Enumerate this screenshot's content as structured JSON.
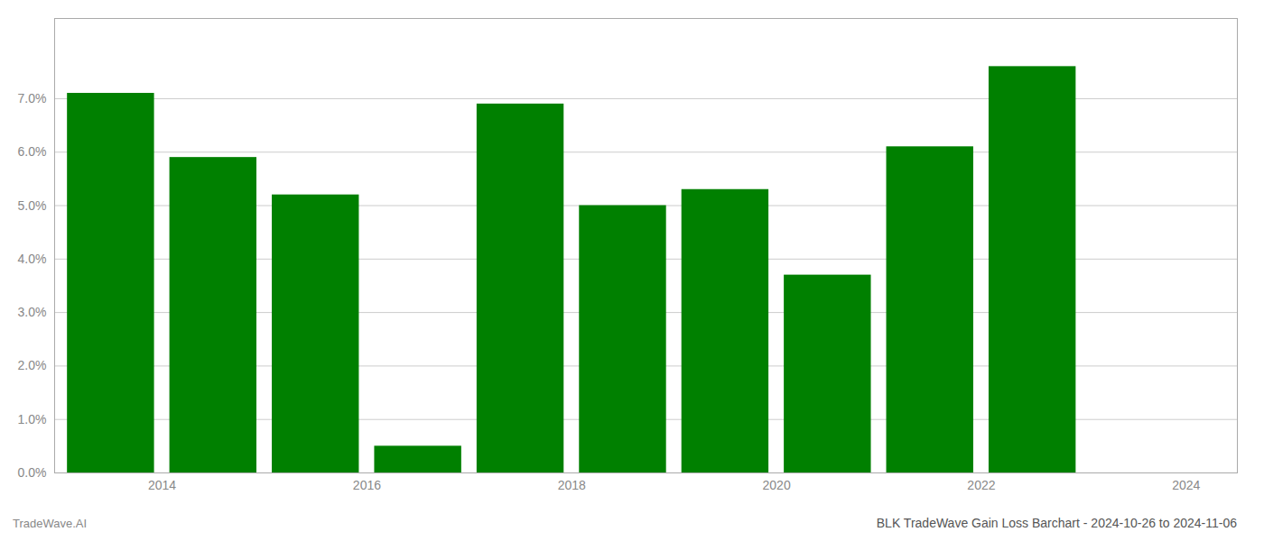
{
  "chart_data": {
    "type": "bar",
    "title": "BLK TradeWave Gain Loss Barchart - 2024-10-26 to 2024-11-06",
    "footer": "TradeWave.AI",
    "x": [
      2014,
      2015,
      2016,
      2017,
      2018,
      2019,
      2020,
      2021,
      2022,
      2023
    ],
    "values": [
      0.071,
      0.059,
      0.052,
      0.005,
      0.069,
      0.05,
      0.053,
      0.037,
      0.061,
      0.076
    ],
    "color": "#008000",
    "xlim": [
      2013.45,
      2025.0
    ],
    "xticks": [
      {
        "value": 2014.5,
        "label": "2014"
      },
      {
        "value": 2016.5,
        "label": "2016"
      },
      {
        "value": 2018.5,
        "label": "2018"
      },
      {
        "value": 2020.5,
        "label": "2020"
      },
      {
        "value": 2022.5,
        "label": "2022"
      },
      {
        "value": 2024.5,
        "label": "2024"
      }
    ],
    "ylim": [
      0,
      0.085
    ],
    "yticks": [
      {
        "value": 0.0,
        "label": "0.0%"
      },
      {
        "value": 0.01,
        "label": "1.0%"
      },
      {
        "value": 0.02,
        "label": "2.0%"
      },
      {
        "value": 0.03,
        "label": "3.0%"
      },
      {
        "value": 0.04,
        "label": "4.0%"
      },
      {
        "value": 0.05,
        "label": "5.0%"
      },
      {
        "value": 0.06,
        "label": "6.0%"
      },
      {
        "value": 0.07,
        "label": "7.0%"
      }
    ],
    "grid": true
  }
}
